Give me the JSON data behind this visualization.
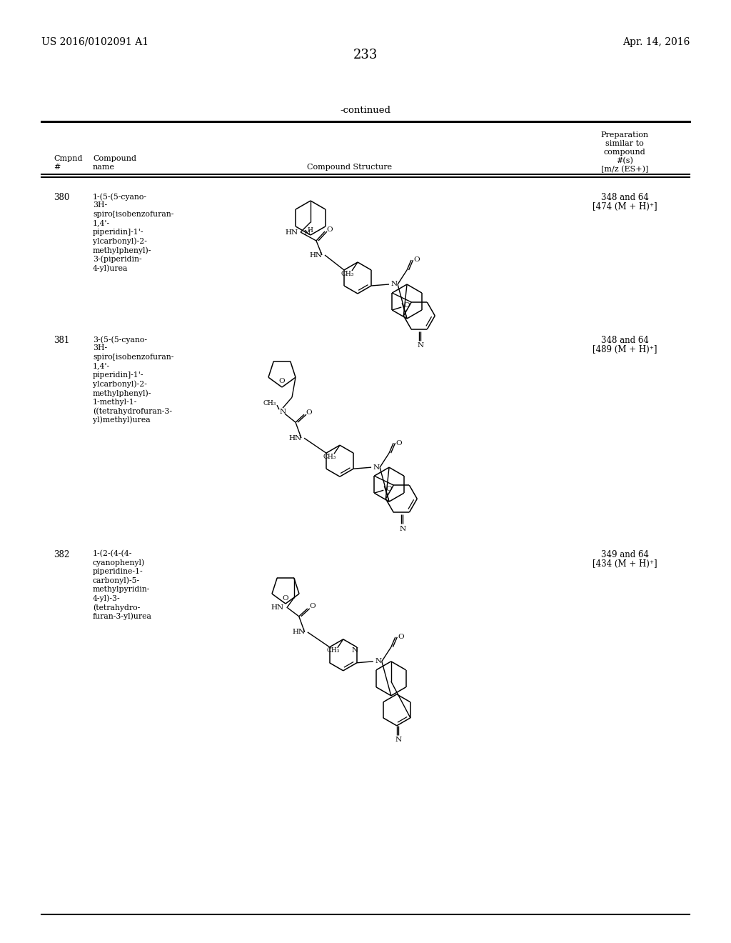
{
  "patent_number": "US 2016/0102091 A1",
  "patent_date": "Apr. 14, 2016",
  "page_number": "233",
  "continued": "-continued",
  "col_headers": {
    "cmpnd": "Cmpnd",
    "hash": "#",
    "compound_name": "Compound",
    "name": "name",
    "structure": "Compound Structure",
    "prep1": "Preparation",
    "prep2": "similar to",
    "prep3": "compound",
    "prep4": "#(s)",
    "prep5": "[m/z (ES+)]"
  },
  "compounds": [
    {
      "num": "380",
      "name_lines": [
        "1-(5-(5-cyano-",
        "3H-",
        "spiro[isobenzofuran-",
        "1,4'-",
        "piperidin]-1'-",
        "ylcarbonyl)-2-",
        "methylphenyl)-",
        "3-(piperidin-",
        "4-yl)urea"
      ],
      "prep": "348 and 64",
      "mz": "[474 (M + H)⁺]"
    },
    {
      "num": "381",
      "name_lines": [
        "3-(5-(5-cyano-",
        "3H-",
        "spiro[isobenzofuran-",
        "1,4'-",
        "piperidin]-1'-",
        "ylcarbonyl)-2-",
        "methylphenyl)-",
        "1-methyl-1-",
        "((tetrahydrofuran-3-",
        "yl)methyl)urea"
      ],
      "prep": "348 and 64",
      "mz": "[489 (M + H)⁺]"
    },
    {
      "num": "382",
      "name_lines": [
        "1-(2-(4-(4-",
        "cyanophenyl)",
        "piperidine-1-",
        "carbonyl)-5-",
        "methylpyridin-",
        "4-yl)-3-",
        "(tetrahydro-",
        "furan-3-yl)urea"
      ],
      "prep": "349 and 64",
      "mz": "[434 (M + H)⁺]"
    }
  ],
  "bg": "#ffffff",
  "fg": "#000000"
}
